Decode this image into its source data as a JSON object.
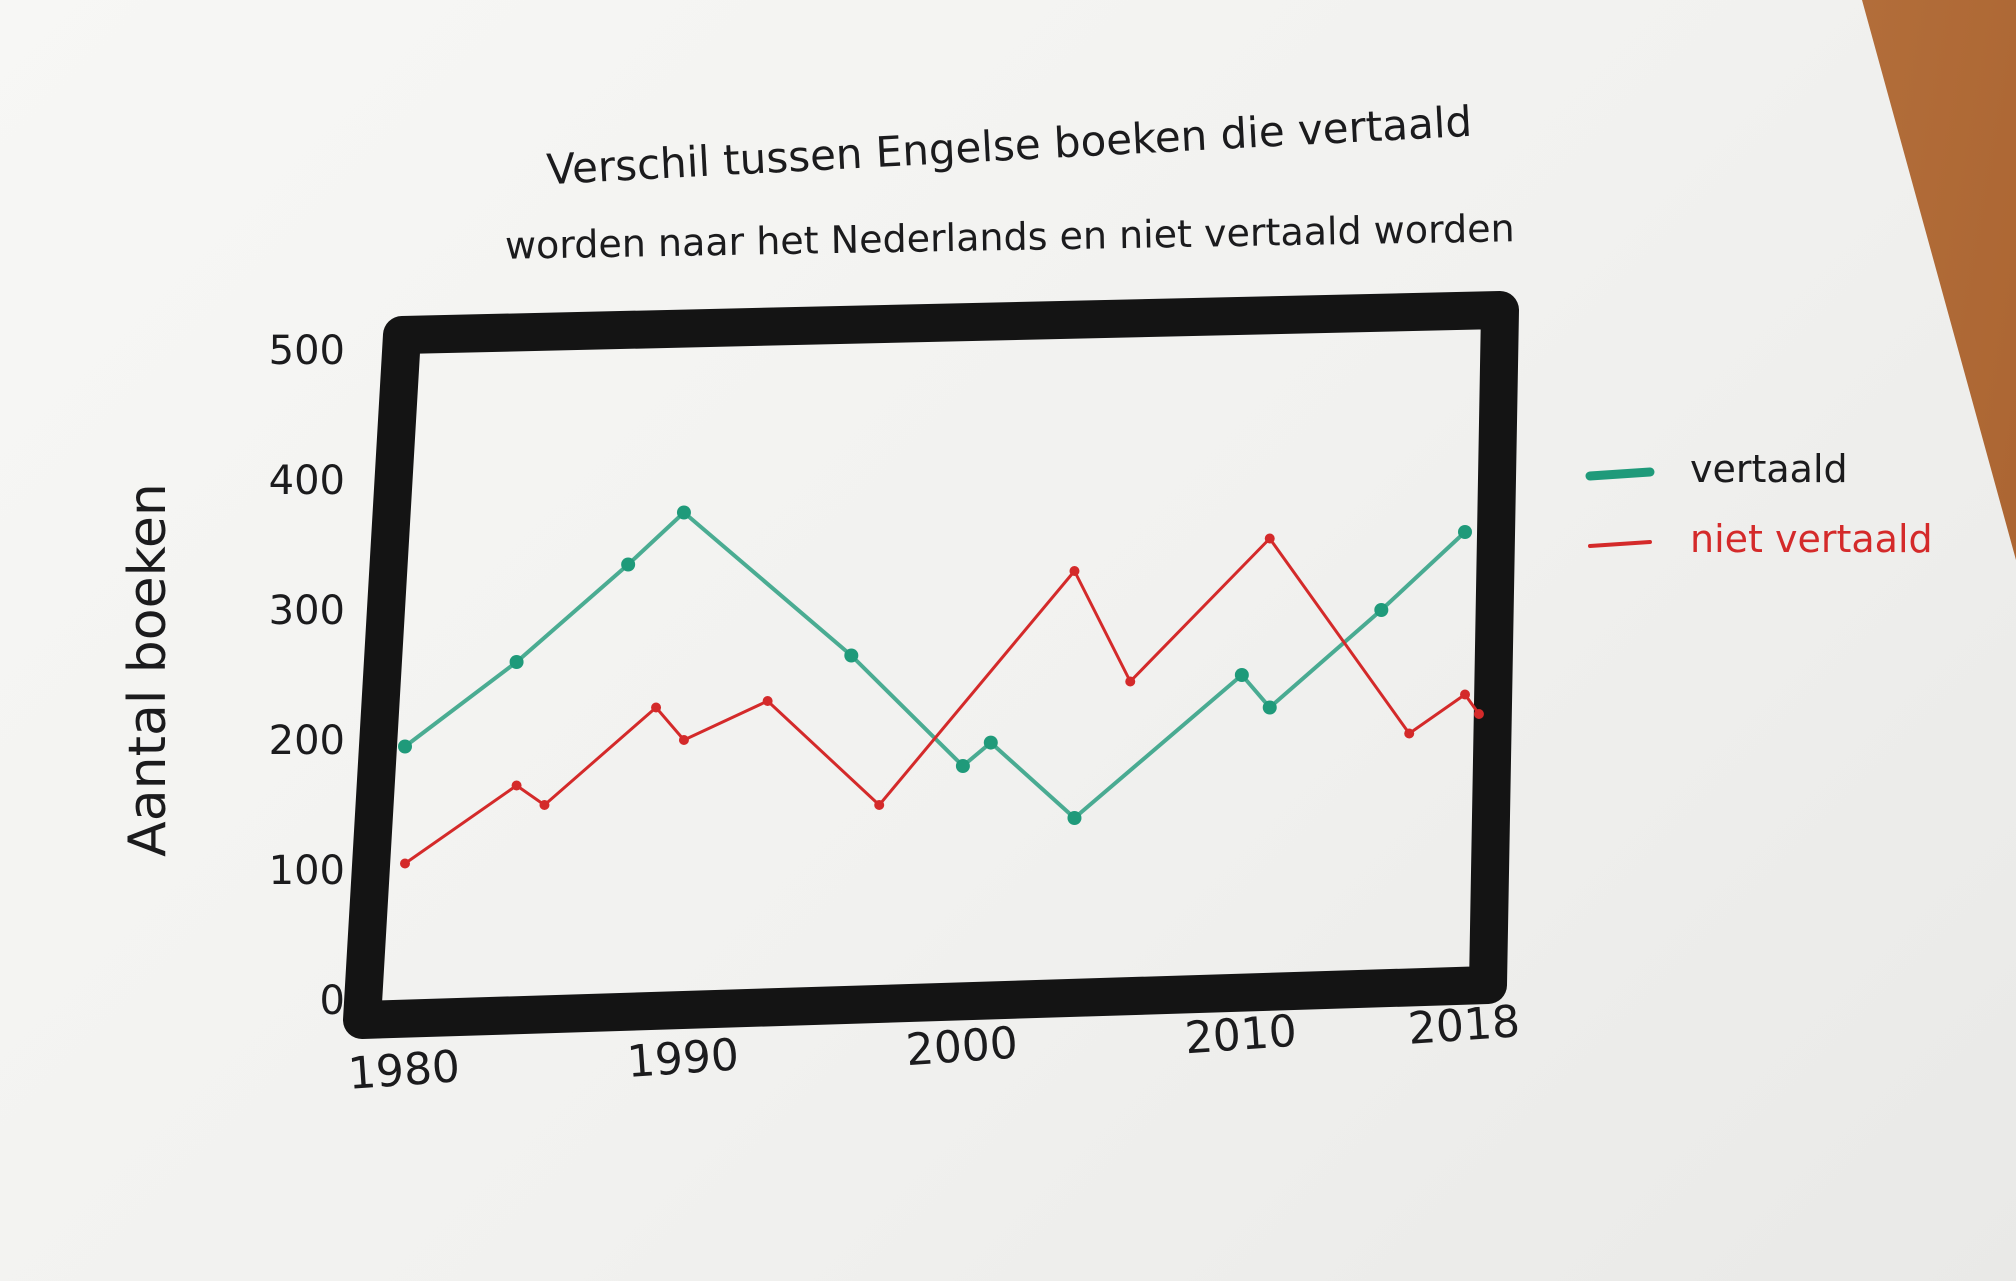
{
  "chart_data": {
    "type": "line",
    "title_line1": "Verschil tussen Engelse boeken die vertaald",
    "title_line2": "worden naar het Nederlands en niet vertaald worden",
    "ylabel": "Aantal boeken",
    "xlabel": "",
    "xlim": [
      1980,
      2018
    ],
    "ylim": [
      0,
      500
    ],
    "x_ticks": [
      "1980",
      "1990",
      "2000",
      "2010",
      "2018"
    ],
    "y_ticks": [
      "0",
      "100",
      "200",
      "300",
      "400",
      "500"
    ],
    "grid": false,
    "legend_position": "right",
    "series": [
      {
        "name": "vertaald",
        "color": "#1f9a7a",
        "points": [
          [
            1980,
            195
          ],
          [
            1984,
            260
          ],
          [
            1988,
            335
          ],
          [
            1990,
            375
          ],
          [
            1996,
            265
          ],
          [
            2000,
            180
          ],
          [
            2001,
            198
          ],
          [
            2004,
            140
          ],
          [
            2010,
            250
          ],
          [
            2011,
            225
          ],
          [
            2015,
            300
          ],
          [
            2018,
            360
          ]
        ]
      },
      {
        "name": "niet vertaald",
        "color": "#d42a2a",
        "points": [
          [
            1980,
            105
          ],
          [
            1984,
            165
          ],
          [
            1985,
            150
          ],
          [
            1989,
            225
          ],
          [
            1990,
            200
          ],
          [
            1993,
            230
          ],
          [
            1997,
            150
          ],
          [
            2004,
            330
          ],
          [
            2006,
            245
          ],
          [
            2011,
            355
          ],
          [
            2016,
            205
          ],
          [
            2018,
            235
          ],
          [
            2018.5,
            220
          ]
        ]
      }
    ]
  }
}
